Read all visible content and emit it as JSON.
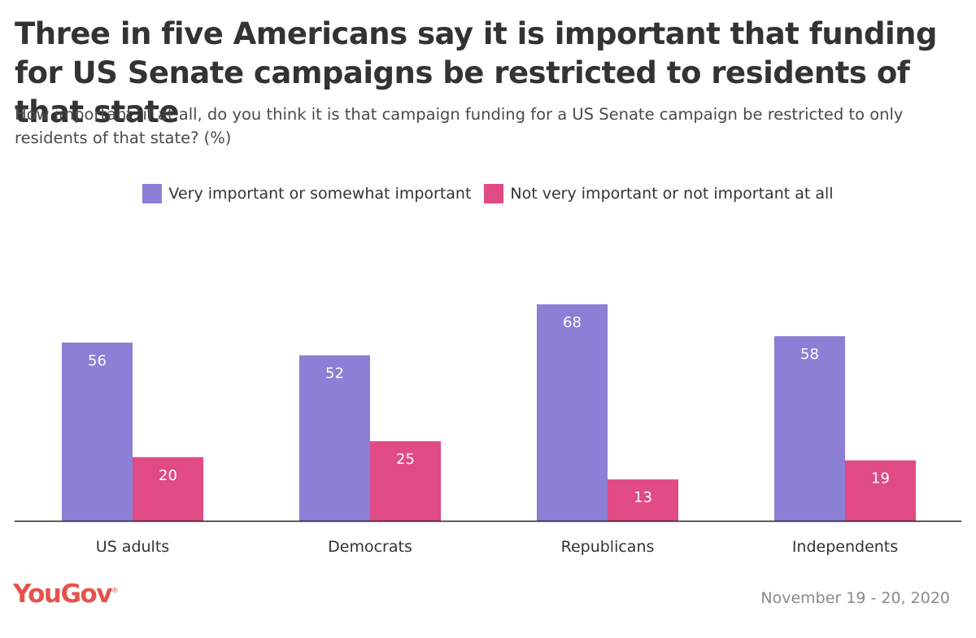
{
  "title": "Three in five Americans say it is important that funding for US Senate campaigns be restricted to residents of that state",
  "subtitle": "How important, if at all, do you think it is that campaign funding for a US Senate campaign be restricted to only residents of that state? (%)",
  "colors": {
    "series1": "#8b7fd6",
    "series2": "#e04a85",
    "brand": "#e6524b",
    "axis": "#222222"
  },
  "chart_data": {
    "type": "bar",
    "categories": [
      "US adults",
      "Democrats",
      "Republicans",
      "Independents"
    ],
    "series": [
      {
        "name": "Very important or somewhat important",
        "values": [
          56,
          52,
          68,
          58
        ]
      },
      {
        "name": "Not very important or not important at all",
        "values": [
          20,
          25,
          13,
          19
        ]
      }
    ],
    "ylim": [
      0,
      68
    ],
    "xlabel": "",
    "ylabel": "",
    "grid": false,
    "legend": "top-center"
  },
  "brand": {
    "name": "YouGov",
    "mark": "®"
  },
  "date": "November 19 - 20, 2020"
}
